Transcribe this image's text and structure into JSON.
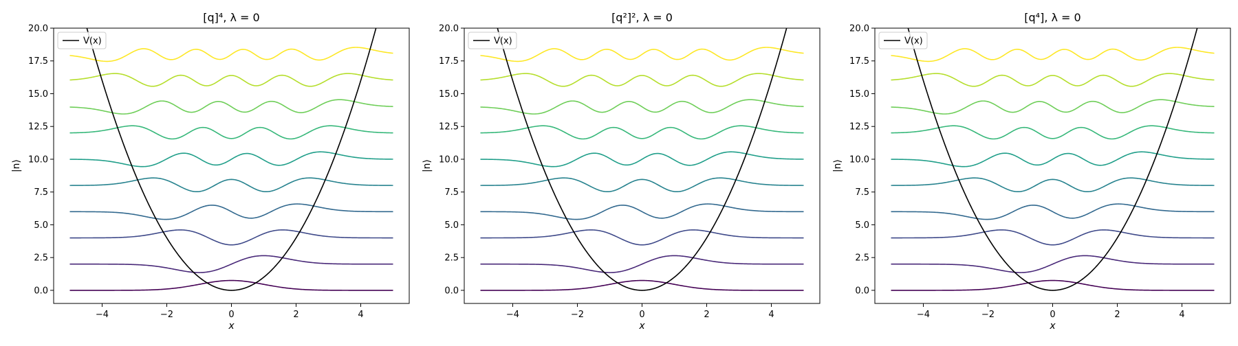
{
  "figure": {
    "background": "#ffffff"
  },
  "chart_data": [
    {
      "type": "line",
      "title": "[q]⁴, λ = 0",
      "xlabel": "x",
      "ylabel": "|n⟩",
      "xlim": [
        -5.5,
        5.5
      ],
      "ylim": [
        -1.0,
        20.0
      ],
      "xticks": [
        -4,
        -2,
        0,
        2,
        4
      ],
      "yticks": [
        0.0,
        2.5,
        5.0,
        7.5,
        10.0,
        12.5,
        15.0,
        17.5,
        20.0
      ],
      "xtick_labels": [
        "−4",
        "−2",
        "0",
        "2",
        "4"
      ],
      "ytick_labels": [
        "0.0",
        "2.5",
        "5.0",
        "7.5",
        "10.0",
        "12.5",
        "15.0",
        "17.5",
        "20.0"
      ],
      "grid": false,
      "legend": {
        "position": "top-left",
        "entries": [
          "V(x)"
        ]
      },
      "potential": {
        "label": "V(x)",
        "formula": "x^2",
        "color": "#000000"
      },
      "series": [
        {
          "n": 0,
          "offset": 0,
          "color": "#440154"
        },
        {
          "n": 1,
          "offset": 2,
          "color": "#482878"
        },
        {
          "n": 2,
          "offset": 4,
          "color": "#3e4989"
        },
        {
          "n": 3,
          "offset": 6,
          "color": "#31688e"
        },
        {
          "n": 4,
          "offset": 8,
          "color": "#26828e"
        },
        {
          "n": 5,
          "offset": 10,
          "color": "#1f9e89"
        },
        {
          "n": 6,
          "offset": 12,
          "color": "#35b779"
        },
        {
          "n": 7,
          "offset": 14,
          "color": "#6ece58"
        },
        {
          "n": 8,
          "offset": 16,
          "color": "#b5de2b"
        },
        {
          "n": 9,
          "offset": 18,
          "color": "#fde725"
        }
      ]
    },
    {
      "type": "line",
      "title": "[q²]², λ = 0",
      "xlabel": "x",
      "ylabel": "|n⟩",
      "xlim": [
        -5.5,
        5.5
      ],
      "ylim": [
        -1.0,
        20.0
      ],
      "xticks": [
        -4,
        -2,
        0,
        2,
        4
      ],
      "yticks": [
        0.0,
        2.5,
        5.0,
        7.5,
        10.0,
        12.5,
        15.0,
        17.5,
        20.0
      ],
      "xtick_labels": [
        "−4",
        "−2",
        "0",
        "2",
        "4"
      ],
      "ytick_labels": [
        "0.0",
        "2.5",
        "5.0",
        "7.5",
        "10.0",
        "12.5",
        "15.0",
        "17.5",
        "20.0"
      ],
      "grid": false,
      "legend": {
        "position": "top-left",
        "entries": [
          "V(x)"
        ]
      },
      "potential": {
        "label": "V(x)",
        "formula": "x^2",
        "color": "#000000"
      },
      "series": [
        {
          "n": 0,
          "offset": 0,
          "color": "#440154"
        },
        {
          "n": 1,
          "offset": 2,
          "color": "#482878"
        },
        {
          "n": 2,
          "offset": 4,
          "color": "#3e4989"
        },
        {
          "n": 3,
          "offset": 6,
          "color": "#31688e"
        },
        {
          "n": 4,
          "offset": 8,
          "color": "#26828e"
        },
        {
          "n": 5,
          "offset": 10,
          "color": "#1f9e89"
        },
        {
          "n": 6,
          "offset": 12,
          "color": "#35b779"
        },
        {
          "n": 7,
          "offset": 14,
          "color": "#6ece58"
        },
        {
          "n": 8,
          "offset": 16,
          "color": "#b5de2b"
        },
        {
          "n": 9,
          "offset": 18,
          "color": "#fde725"
        }
      ]
    },
    {
      "type": "line",
      "title": "[q⁴], λ = 0",
      "xlabel": "x",
      "ylabel": "|n⟩",
      "xlim": [
        -5.5,
        5.5
      ],
      "ylim": [
        -1.0,
        20.0
      ],
      "xticks": [
        -4,
        -2,
        0,
        2,
        4
      ],
      "yticks": [
        0.0,
        2.5,
        5.0,
        7.5,
        10.0,
        12.5,
        15.0,
        17.5,
        20.0
      ],
      "xtick_labels": [
        "−4",
        "−2",
        "0",
        "2",
        "4"
      ],
      "ytick_labels": [
        "0.0",
        "2.5",
        "5.0",
        "7.5",
        "10.0",
        "12.5",
        "15.0",
        "17.5",
        "20.0"
      ],
      "grid": false,
      "legend": {
        "position": "top-left",
        "entries": [
          "V(x)"
        ]
      },
      "potential": {
        "label": "V(x)",
        "formula": "x^2",
        "color": "#000000"
      },
      "series": [
        {
          "n": 0,
          "offset": 0,
          "color": "#440154"
        },
        {
          "n": 1,
          "offset": 2,
          "color": "#482878"
        },
        {
          "n": 2,
          "offset": 4,
          "color": "#3e4989"
        },
        {
          "n": 3,
          "offset": 6,
          "color": "#31688e"
        },
        {
          "n": 4,
          "offset": 8,
          "color": "#26828e"
        },
        {
          "n": 5,
          "offset": 10,
          "color": "#1f9e89"
        },
        {
          "n": 6,
          "offset": 12,
          "color": "#35b779"
        },
        {
          "n": 7,
          "offset": 14,
          "color": "#6ece58"
        },
        {
          "n": 8,
          "offset": 16,
          "color": "#b5de2b"
        },
        {
          "n": 9,
          "offset": 18,
          "color": "#fde725"
        }
      ]
    }
  ]
}
